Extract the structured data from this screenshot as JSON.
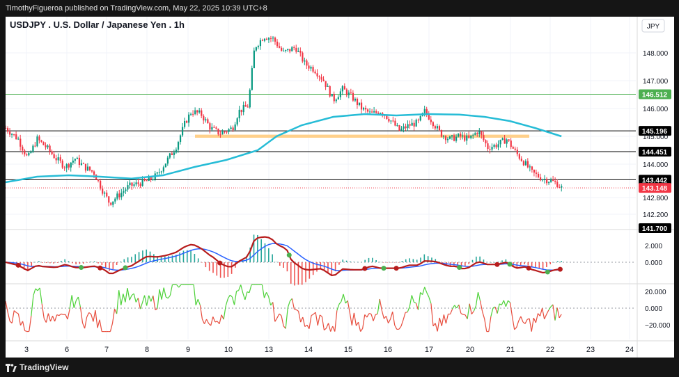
{
  "header": {
    "publisher_line": "TimothyFigueroa published on TradingView.com, May 22, 2025 10:39 UTC+8"
  },
  "footer": {
    "brand": "TradingView"
  },
  "chart_data": {
    "type": "candlestick",
    "title": "USDJPY . U.S. Dollar / Japanese Yen . 1h",
    "currency": "JPY",
    "price_axis": {
      "ticks": [
        148.0,
        147.0,
        146.0,
        145.0,
        144.0,
        142.8,
        142.2
      ],
      "tick_labels": [
        "148.000",
        "147.000",
        "146.000",
        "145.000",
        "144.000",
        "142.800",
        "142.200"
      ],
      "range": [
        141.7,
        149.0
      ]
    },
    "x_axis": {
      "tick_labels": [
        "3",
        "6",
        "7",
        "8",
        "9",
        "10",
        "13",
        "14",
        "15",
        "16",
        "17",
        "20",
        "21",
        "22",
        "23",
        "24"
      ]
    },
    "price_lines": [
      {
        "label": "146.512",
        "value": 146.512,
        "color": "#4caf50"
      },
      {
        "label": "145.196",
        "value": 145.196,
        "color": "#000000"
      },
      {
        "label": "144.451",
        "value": 144.451,
        "color": "#000000"
      },
      {
        "label": "143.442",
        "value": 143.442,
        "color": "#000000"
      },
      {
        "label": "143.148",
        "value": 143.148,
        "color": "#f23645"
      },
      {
        "label": "141.700",
        "value": 141.7,
        "color": "#000000"
      }
    ],
    "zone": {
      "from": 144.95,
      "to": 145.06,
      "color": "#ffd08a"
    },
    "close_path": [
      [
        0,
        145.3
      ],
      [
        0.02,
        144.9
      ],
      [
        0.035,
        144.2
      ],
      [
        0.05,
        144.9
      ],
      [
        0.065,
        144.6
      ],
      [
        0.08,
        144.2
      ],
      [
        0.095,
        143.9
      ],
      [
        0.11,
        144.2
      ],
      [
        0.125,
        143.9
      ],
      [
        0.14,
        143.7
      ],
      [
        0.155,
        143.0
      ],
      [
        0.165,
        142.6
      ],
      [
        0.18,
        142.9
      ],
      [
        0.195,
        143.2
      ],
      [
        0.21,
        143.3
      ],
      [
        0.225,
        143.4
      ],
      [
        0.24,
        143.6
      ],
      [
        0.255,
        144.1
      ],
      [
        0.27,
        144.6
      ],
      [
        0.285,
        145.5
      ],
      [
        0.295,
        145.9
      ],
      [
        0.31,
        145.8
      ],
      [
        0.325,
        145.3
      ],
      [
        0.34,
        145.1
      ],
      [
        0.36,
        145.3
      ],
      [
        0.37,
        145.9
      ],
      [
        0.385,
        146.1
      ],
      [
        0.395,
        148.2
      ],
      [
        0.41,
        148.6
      ],
      [
        0.425,
        148.5
      ],
      [
        0.44,
        148.0
      ],
      [
        0.46,
        148.2
      ],
      [
        0.475,
        147.6
      ],
      [
        0.49,
        147.4
      ],
      [
        0.505,
        147.0
      ],
      [
        0.52,
        146.3
      ],
      [
        0.535,
        146.7
      ],
      [
        0.55,
        146.4
      ],
      [
        0.565,
        146.0
      ],
      [
        0.58,
        145.8
      ],
      [
        0.595,
        145.9
      ],
      [
        0.61,
        145.6
      ],
      [
        0.625,
        145.2
      ],
      [
        0.64,
        145.4
      ],
      [
        0.655,
        145.5
      ],
      [
        0.665,
        145.9
      ],
      [
        0.675,
        145.6
      ],
      [
        0.69,
        145.1
      ],
      [
        0.705,
        144.9
      ],
      [
        0.72,
        145.0
      ],
      [
        0.735,
        144.9
      ],
      [
        0.75,
        145.2
      ],
      [
        0.765,
        144.6
      ],
      [
        0.78,
        144.7
      ],
      [
        0.795,
        144.9
      ],
      [
        0.81,
        144.4
      ],
      [
        0.825,
        144.0
      ],
      [
        0.835,
        143.7
      ],
      [
        0.85,
        143.5
      ],
      [
        0.865,
        143.4
      ],
      [
        0.875,
        143.3
      ],
      [
        0.882,
        143.15
      ]
    ],
    "moving_average": {
      "color": "#26bcd6",
      "values": [
        [
          0,
          143.35
        ],
        [
          0.05,
          143.55
        ],
        [
          0.1,
          143.6
        ],
        [
          0.15,
          143.55
        ],
        [
          0.2,
          143.48
        ],
        [
          0.25,
          143.6
        ],
        [
          0.3,
          143.9
        ],
        [
          0.35,
          144.15
        ],
        [
          0.4,
          144.5
        ],
        [
          0.43,
          145.0
        ],
        [
          0.47,
          145.4
        ],
        [
          0.52,
          145.7
        ],
        [
          0.57,
          145.8
        ],
        [
          0.62,
          145.75
        ],
        [
          0.67,
          145.8
        ],
        [
          0.72,
          145.78
        ],
        [
          0.76,
          145.7
        ],
        [
          0.8,
          145.55
        ],
        [
          0.84,
          145.3
        ],
        [
          0.882,
          145.0
        ]
      ]
    },
    "oscillator_1": {
      "axis_ticks": [
        2.0,
        0.0
      ],
      "tick_labels": [
        "2.000",
        "0.000"
      ]
    },
    "oscillator_2": {
      "axis_ticks": [
        20.0,
        0.0,
        -20.0
      ],
      "tick_labels": [
        "20.000",
        "0.000",
        "−20.000"
      ]
    }
  }
}
